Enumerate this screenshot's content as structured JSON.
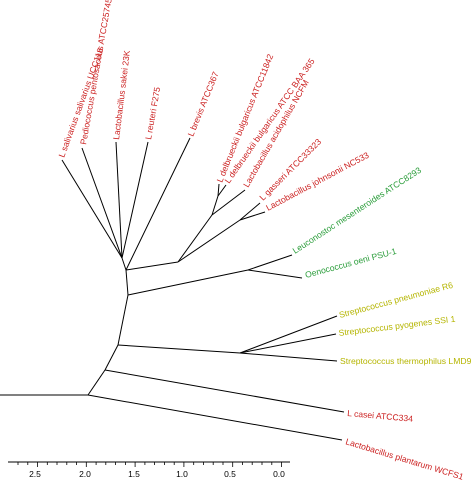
{
  "colors": {
    "lactobacillales_red": "#cc2222",
    "leuconostoc_green": "#2a9d3a",
    "streptococcus_yellow": "#b5b500",
    "branch": "#000000"
  },
  "tree": {
    "leaves": [
      {
        "name": "L salivarius salivarius UCC118",
        "group": "lactobacillales_red"
      },
      {
        "name": "Pediococcus pentosaceus ATCC25745",
        "group": "lactobacillales_red"
      },
      {
        "name": "Lactobacillus sakei 23K",
        "group": "lactobacillales_red"
      },
      {
        "name": "L reuteri F275",
        "group": "lactobacillales_red"
      },
      {
        "name": "L brevis ATCC367",
        "group": "lactobacillales_red"
      },
      {
        "name": "L delbrueckii bulgaricus ATCC11842",
        "group": "lactobacillales_red"
      },
      {
        "name": "L delbrueckii bulgaricus ATCC BAA 365",
        "group": "lactobacillales_red"
      },
      {
        "name": "Lactobacillus acidophilus NCFM",
        "group": "lactobacillales_red"
      },
      {
        "name": "L gasseri ATCC33323",
        "group": "lactobacillales_red"
      },
      {
        "name": "Lactobacillus johnsonii NC533",
        "group": "lactobacillales_red"
      },
      {
        "name": "Leuconostoc mesenteroides ATCC8293",
        "group": "leuconostoc_green"
      },
      {
        "name": "Oenococcus oeni PSU-1",
        "group": "leuconostoc_green"
      },
      {
        "name": "Streptococcus pneumoniae R6",
        "group": "streptococcus_yellow"
      },
      {
        "name": "Streptococcus pyogenes SSI 1",
        "group": "streptococcus_yellow"
      },
      {
        "name": "Streptococcus thermophilus LMD9",
        "group": "streptococcus_yellow"
      },
      {
        "name": "L casei ATCC334",
        "group": "lactobacillales_red"
      },
      {
        "name": "Lactobacillus plantarum WCFS1",
        "group": "lactobacillales_red"
      }
    ]
  },
  "scale_axis": {
    "ticks": [
      "2.5",
      "2.0",
      "1.5",
      "1.0",
      "0.5",
      "0.0"
    ]
  }
}
